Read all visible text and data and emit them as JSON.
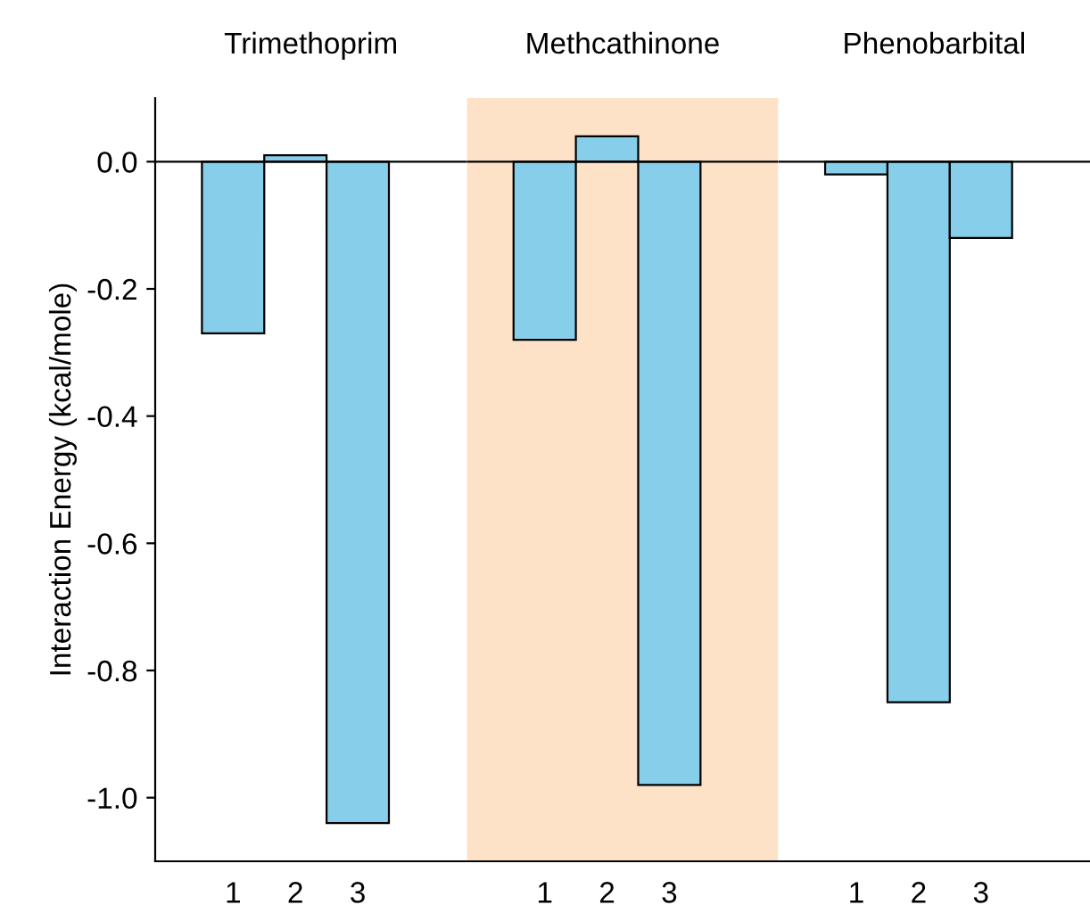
{
  "chart_data": [
    {
      "type": "bar",
      "title": "Trimethoprim",
      "ylabel": "Interaction Energy (kcal/mole)",
      "categories": [
        "1",
        "2",
        "3"
      ],
      "values": [
        -0.27,
        0.01,
        -1.04
      ],
      "color": "#87ceeb",
      "ylim": [
        -1.1,
        0.1
      ],
      "yticks": [
        {
          "value": -1.0,
          "label": "-1.0"
        },
        {
          "value": -0.8,
          "label": "-0.8"
        },
        {
          "value": -0.6,
          "label": "-0.6"
        },
        {
          "value": -0.4,
          "label": "-0.4"
        },
        {
          "value": -0.2,
          "label": "-0.2"
        },
        {
          "value": 0.0,
          "label": "0.0"
        }
      ],
      "ref_lines": [
        {
          "axis": "y",
          "value": 0
        }
      ],
      "grid": false,
      "legend": false
    },
    {
      "type": "bar",
      "title": "Methcathinone",
      "categories": [
        "1",
        "2",
        "3"
      ],
      "values": [
        -0.28,
        0.04,
        -0.98
      ],
      "color": "#87ceeb",
      "ylim": [
        -1.1,
        0.1
      ],
      "tick_labels": "x",
      "bands": [
        {
          "axis": "x",
          "from": "1",
          "to": "3",
          "color": "#fde2c8"
        }
      ],
      "ref_lines": [
        {
          "axis": "y",
          "value": 0
        }
      ],
      "grid": false,
      "legend": false
    },
    {
      "type": "bar",
      "title": "Phenobarbital",
      "categories": [
        "1",
        "2",
        "3"
      ],
      "values": [
        -0.02,
        -0.85,
        -0.12
      ],
      "color": "#87ceeb",
      "ylim": [
        -1.1,
        0.1
      ],
      "tick_labels": "x",
      "ref_lines": [
        {
          "axis": "y",
          "value": 0
        }
      ],
      "grid": false,
      "legend": false
    }
  ]
}
